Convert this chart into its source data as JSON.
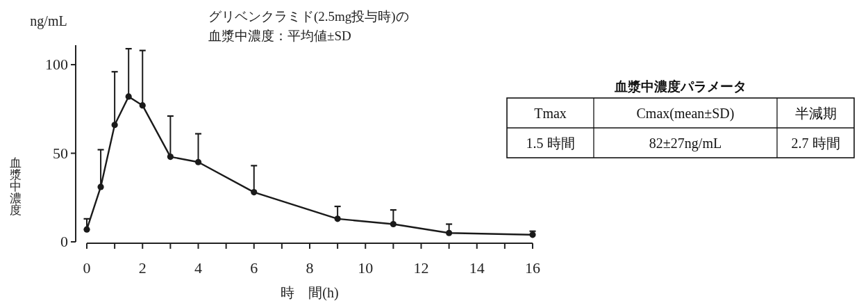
{
  "chart_data": [
    {
      "type": "line",
      "title": "グリベンクラミド(2.5mg投与時)の血漿中濃度：平均値±SD",
      "xlabel": "時　間(h)",
      "ylabel": "血漿中濃度",
      "annotations": [
        "ng/mL"
      ],
      "x": [
        0,
        0.5,
        1,
        1.5,
        2,
        3,
        4,
        6,
        9,
        11,
        13,
        16
      ],
      "values": [
        7,
        31,
        66,
        82,
        77,
        48,
        45,
        28,
        13,
        10,
        5,
        4
      ],
      "errors": [
        [
          7,
          13
        ],
        [
          31,
          52
        ],
        [
          66,
          96
        ],
        [
          82,
          109
        ],
        [
          77,
          108
        ],
        [
          48,
          71
        ],
        [
          45,
          61
        ],
        [
          28,
          43
        ],
        [
          13,
          20
        ],
        [
          10,
          18
        ],
        [
          5,
          10
        ],
        [
          4,
          6
        ]
      ],
      "color": "#1a1a1a",
      "marker": "circle",
      "line_style": "solid",
      "xlim": [
        0,
        16
      ],
      "xticks": [
        0,
        {
          "value": 1,
          "label": null
        },
        2,
        {
          "value": 3,
          "label": null
        },
        4,
        {
          "value": 5,
          "label": null
        },
        6,
        {
          "value": 7,
          "label": null
        },
        8,
        {
          "value": 9,
          "label": null
        },
        10,
        {
          "value": 11,
          "label": null
        },
        12,
        {
          "value": 13,
          "label": null
        },
        14,
        {
          "value": 15,
          "label": null
        },
        16
      ],
      "ylim": [
        0,
        111
      ],
      "yticks": [
        0,
        50,
        100
      ]
    },
    {
      "type": "other",
      "title": "血漿中濃度パラメータ",
      "annotations": [
        "Tmax",
        "Cmax(mean±SD)",
        "半減期",
        "1.5 時間",
        "82±27ng/mL",
        "2.7 時間"
      ]
    }
  ]
}
